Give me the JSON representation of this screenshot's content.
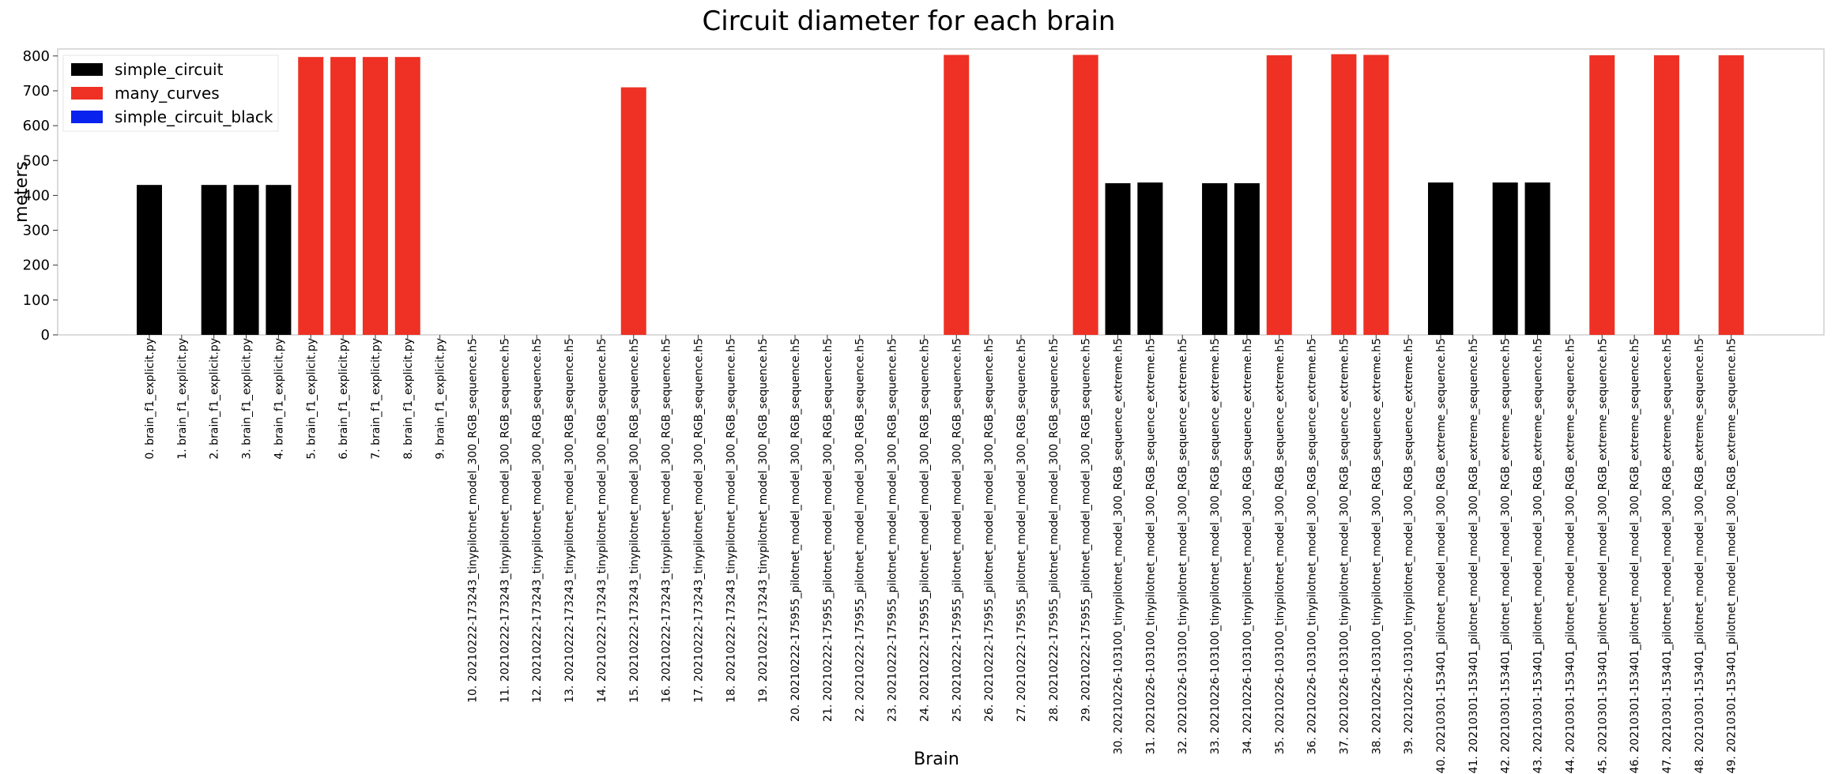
{
  "chart_data": {
    "type": "bar",
    "title": "Circuit diameter for each brain",
    "xlabel": "Brain",
    "ylabel": "meters",
    "ylim": [
      0,
      820
    ],
    "yticks": [
      0,
      100,
      200,
      300,
      400,
      500,
      600,
      700,
      800
    ],
    "grid": false,
    "legend_position": "top-left",
    "legend": [
      {
        "name": "simple_circuit",
        "color": "#000000"
      },
      {
        "name": "many_curves",
        "color": "#ee3124"
      },
      {
        "name": "simple_circuit_black",
        "color": "#0a22ee"
      }
    ],
    "categories": [
      "0. brain_f1_explicit.py",
      "1. brain_f1_explicit.py",
      "2. brain_f1_explicit.py",
      "3. brain_f1_explicit.py",
      "4. brain_f1_explicit.py",
      "5. brain_f1_explicit.py",
      "6. brain_f1_explicit.py",
      "7. brain_f1_explicit.py",
      "8. brain_f1_explicit.py",
      "9. brain_f1_explicit.py",
      "10. 20210222-173243_tinypilotnet_model_300_RGB_sequence.h5",
      "11. 20210222-173243_tinypilotnet_model_300_RGB_sequence.h5",
      "12. 20210222-173243_tinypilotnet_model_300_RGB_sequence.h5",
      "13. 20210222-173243_tinypilotnet_model_300_RGB_sequence.h5",
      "14. 20210222-173243_tinypilotnet_model_300_RGB_sequence.h5",
      "15. 20210222-173243_tinypilotnet_model_300_RGB_sequence.h5",
      "16. 20210222-173243_tinypilotnet_model_300_RGB_sequence.h5",
      "17. 20210222-173243_tinypilotnet_model_300_RGB_sequence.h5",
      "18. 20210222-173243_tinypilotnet_model_300_RGB_sequence.h5",
      "19. 20210222-173243_tinypilotnet_model_300_RGB_sequence.h5",
      "20. 20210222-175955_pilotnet_model_model_300_RGB_sequence.h5",
      "21. 20210222-175955_pilotnet_model_model_300_RGB_sequence.h5",
      "22. 20210222-175955_pilotnet_model_model_300_RGB_sequence.h5",
      "23. 20210222-175955_pilotnet_model_model_300_RGB_sequence.h5",
      "24. 20210222-175955_pilotnet_model_model_300_RGB_sequence.h5",
      "25. 20210222-175955_pilotnet_model_model_300_RGB_sequence.h5",
      "26. 20210222-175955_pilotnet_model_model_300_RGB_sequence.h5",
      "27. 20210222-175955_pilotnet_model_model_300_RGB_sequence.h5",
      "28. 20210222-175955_pilotnet_model_model_300_RGB_sequence.h5",
      "29. 20210222-175955_pilotnet_model_model_300_RGB_sequence.h5",
      "30. 20210226-103100_tinypilotnet_model_300_RGB_sequence_extreme.h5",
      "31. 20210226-103100_tinypilotnet_model_300_RGB_sequence_extreme.h5",
      "32. 20210226-103100_tinypilotnet_model_300_RGB_sequence_extreme.h5",
      "33. 20210226-103100_tinypilotnet_model_300_RGB_sequence_extreme.h5",
      "34. 20210226-103100_tinypilotnet_model_300_RGB_sequence_extreme.h5",
      "35. 20210226-103100_tinypilotnet_model_300_RGB_sequence_extreme.h5",
      "36. 20210226-103100_tinypilotnet_model_300_RGB_sequence_extreme.h5",
      "37. 20210226-103100_tinypilotnet_model_300_RGB_sequence_extreme.h5",
      "38. 20210226-103100_tinypilotnet_model_300_RGB_sequence_extreme.h5",
      "39. 20210226-103100_tinypilotnet_model_300_RGB_sequence_extreme.h5",
      "40. 20210301-153401_pilotnet_model_model_300_RGB_extreme_sequence.h5",
      "41. 20210301-153401_pilotnet_model_model_300_RGB_extreme_sequence.h5",
      "42. 20210301-153401_pilotnet_model_model_300_RGB_extreme_sequence.h5",
      "43. 20210301-153401_pilotnet_model_model_300_RGB_extreme_sequence.h5",
      "44. 20210301-153401_pilotnet_model_model_300_RGB_extreme_sequence.h5",
      "45. 20210301-153401_pilotnet_model_model_300_RGB_extreme_sequence.h5",
      "46. 20210301-153401_pilotnet_model_model_300_RGB_extreme_sequence.h5",
      "47. 20210301-153401_pilotnet_model_model_300_RGB_extreme_sequence.h5",
      "48. 20210301-153401_pilotnet_model_model_300_RGB_extreme_sequence.h5",
      "49. 20210301-153401_pilotnet_model_model_300_RGB_extreme_sequence.h5"
    ],
    "values": [
      430,
      null,
      430,
      430,
      430,
      797,
      797,
      797,
      797,
      null,
      null,
      null,
      null,
      null,
      null,
      710,
      null,
      null,
      null,
      null,
      null,
      null,
      null,
      null,
      null,
      803,
      null,
      null,
      null,
      803,
      435,
      437,
      null,
      435,
      435,
      802,
      null,
      805,
      803,
      null,
      437,
      null,
      437,
      437,
      null,
      802,
      null,
      802,
      null,
      802
    ],
    "bar_series": [
      "simple_circuit",
      null,
      "simple_circuit",
      "simple_circuit",
      "simple_circuit",
      "many_curves",
      "many_curves",
      "many_curves",
      "many_curves",
      null,
      null,
      null,
      null,
      null,
      null,
      "many_curves",
      null,
      null,
      null,
      null,
      null,
      null,
      null,
      null,
      null,
      "many_curves",
      null,
      null,
      null,
      "many_curves",
      "simple_circuit",
      "simple_circuit",
      null,
      "simple_circuit",
      "simple_circuit",
      "many_curves",
      null,
      "many_curves",
      "many_curves",
      null,
      "simple_circuit",
      null,
      "simple_circuit",
      "simple_circuit",
      null,
      "many_curves",
      null,
      "many_curves",
      null,
      "many_curves"
    ]
  }
}
